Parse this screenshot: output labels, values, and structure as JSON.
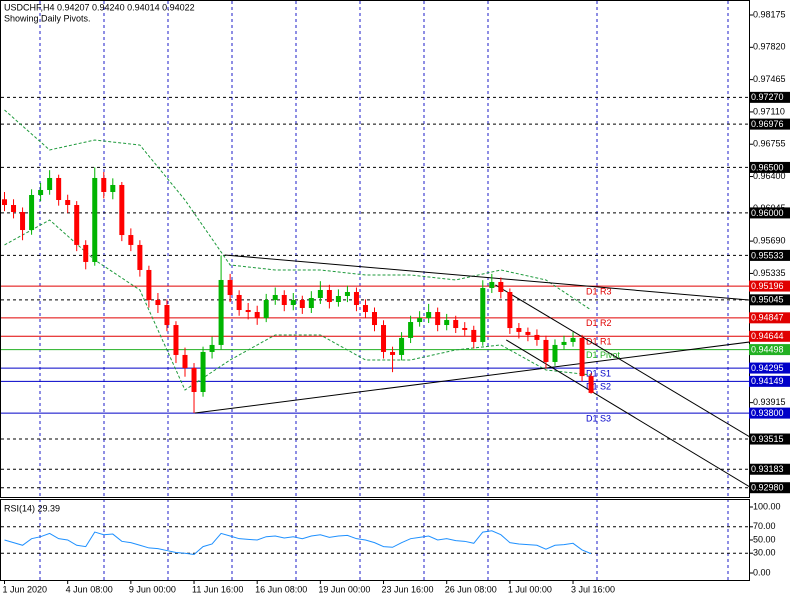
{
  "chart_data": {
    "type": "candlestick",
    "title": "USDCHF,H4  0.94207 0.94240 0.94014 0.94022",
    "subtitle": "Showing Daily Pivots.",
    "xlim": [
      -0.5,
      82.5
    ],
    "ylim": [
      0.92878,
      0.98318
    ],
    "xticks": [
      {
        "value": 0,
        "label": "1 Jun 2020"
      },
      {
        "value": 7,
        "label": "4 Jun 08:00"
      },
      {
        "value": 14,
        "label": "9 Jun 00:00"
      },
      {
        "value": 21,
        "label": "11 Jun 16:00"
      },
      {
        "value": 28,
        "label": "16 Jun 08:00"
      },
      {
        "value": 35,
        "label": "19 Jun 00:00"
      },
      {
        "value": 42,
        "label": "23 Jun 16:00"
      },
      {
        "value": 49,
        "label": "26 Jun 08:00"
      },
      {
        "value": 56,
        "label": "1 Jul 00:00"
      },
      {
        "value": 63,
        "label": "3 Jul 16:00"
      }
    ],
    "yticks": [
      {
        "value": 0.98175,
        "label": "0.98175"
      },
      {
        "value": 0.9782,
        "label": "0.97820"
      },
      {
        "value": 0.97465,
        "label": "0.97465"
      },
      {
        "value": 0.9711,
        "label": "0.97110"
      },
      {
        "value": 0.96755,
        "label": "0.96755"
      },
      {
        "value": 0.964,
        "label": "0.96400"
      },
      {
        "value": 0.96045,
        "label": "0.96045"
      },
      {
        "value": 0.9569,
        "label": "0.95690"
      },
      {
        "value": 0.95335,
        "label": "0.95335"
      },
      {
        "value": 0.93915,
        "label": "0.93915"
      }
    ],
    "up_color": "#00b400",
    "down_color": "#ff0000",
    "open": [
      0.9615,
      0.96087,
      0.9601,
      0.95812,
      0.96197,
      0.96252,
      0.96384,
      0.96142,
      0.96087,
      0.95648,
      0.95461,
      0.96384,
      0.9623,
      0.96307,
      0.95757,
      0.95648,
      0.95373,
      0.95043,
      0.94988,
      0.94768,
      0.94439,
      0.94296,
      0.94032,
      0.94472,
      0.94549,
      0.95263,
      0.95098,
      0.94933,
      0.94911,
      0.94845,
      0.95043,
      0.95098,
      0.94988,
      0.95043,
      0.94955,
      0.95065,
      0.95153,
      0.95021,
      0.95087,
      0.95131,
      0.94988,
      0.94911,
      0.94768,
      0.94472,
      0.94439,
      0.94626,
      0.94801,
      0.94845,
      0.94911,
      0.94768,
      0.94823,
      0.94735,
      0.94714,
      0.94582,
      0.95175,
      0.95241,
      0.95131,
      0.94735,
      0.94692,
      0.94659,
      0.94604,
      0.94362,
      0.94549,
      0.94582,
      0.94626,
      0.94207
    ],
    "high": [
      0.9623,
      0.9615,
      0.9606,
      0.9626,
      0.9633,
      0.9647,
      0.9642,
      0.962,
      0.9613,
      0.957,
      0.965,
      0.9645,
      0.9638,
      0.9634,
      0.9583,
      0.957,
      0.9542,
      0.9512,
      0.9505,
      0.9481,
      0.9452,
      0.9435,
      0.9453,
      0.9464,
      0.95533,
      0.9533,
      0.9515,
      0.9501,
      0.9498,
      0.9511,
      0.9518,
      0.9515,
      0.9512,
      0.9509,
      0.9514,
      0.9525,
      0.9521,
      0.9516,
      0.952,
      0.9518,
      0.9505,
      0.9496,
      0.9482,
      0.9453,
      0.9469,
      0.9487,
      0.9492,
      0.95,
      0.9496,
      0.9489,
      0.9487,
      0.948,
      0.9476,
      0.9526,
      0.9533,
      0.9529,
      0.9517,
      0.9479,
      0.9474,
      0.9472,
      0.9465,
      0.9461,
      0.9465,
      0.9469,
      0.9466,
      0.9424
    ],
    "low": [
      0.9602,
      0.9594,
      0.957,
      0.9576,
      0.9613,
      0.962,
      0.9608,
      0.96,
      0.9558,
      0.9538,
      0.9542,
      0.9616,
      0.9615,
      0.9569,
      0.9558,
      0.953,
      0.9496,
      0.949,
      0.947,
      0.9435,
      0.942,
      0.938,
      0.9398,
      0.944,
      0.945,
      0.9502,
      0.9487,
      0.9483,
      0.9477,
      0.948,
      0.9499,
      0.9492,
      0.9493,
      0.9489,
      0.949,
      0.95,
      0.9495,
      0.9497,
      0.9502,
      0.9492,
      0.9485,
      0.947,
      0.944,
      0.9425,
      0.9438,
      0.9457,
      0.9475,
      0.9479,
      0.947,
      0.9471,
      0.9468,
      0.9465,
      0.9451,
      0.9454,
      0.9512,
      0.9506,
      0.9467,
      0.9462,
      0.9459,
      0.9454,
      0.9429,
      0.9432,
      0.945,
      0.9453,
      0.9415,
      0.94014
    ],
    "close": [
      0.96087,
      0.9601,
      0.95812,
      0.96197,
      0.96252,
      0.96384,
      0.96142,
      0.96087,
      0.95648,
      0.95461,
      0.96384,
      0.9623,
      0.96307,
      0.95757,
      0.95648,
      0.95373,
      0.95043,
      0.94988,
      0.94768,
      0.94439,
      0.94296,
      0.94032,
      0.94472,
      0.94549,
      0.95263,
      0.95098,
      0.94933,
      0.94911,
      0.94845,
      0.95043,
      0.95098,
      0.94988,
      0.95043,
      0.94955,
      0.95065,
      0.95153,
      0.95021,
      0.95087,
      0.95131,
      0.94988,
      0.94911,
      0.94768,
      0.94472,
      0.94439,
      0.94626,
      0.94801,
      0.94845,
      0.94911,
      0.94768,
      0.94823,
      0.94735,
      0.94714,
      0.94582,
      0.95175,
      0.95241,
      0.95131,
      0.94735,
      0.94692,
      0.94659,
      0.94604,
      0.94362,
      0.94549,
      0.94582,
      0.94626,
      0.94207,
      0.94022
    ],
    "bands": {
      "color": "#1e9a3c",
      "x": [
        0,
        5,
        10,
        15,
        20,
        25,
        30,
        35,
        40,
        45,
        50,
        55,
        60,
        65
      ],
      "upper": [
        0.97131,
        0.96692,
        0.96801,
        0.96746,
        0.96142,
        0.95428,
        0.95373,
        0.95373,
        0.95318,
        0.95318,
        0.95263,
        0.95373,
        0.95263,
        0.94933
      ],
      "lower": [
        0.95648,
        0.95922,
        0.95483,
        0.95153,
        0.94054,
        0.94384,
        0.94659,
        0.94659,
        0.94384,
        0.94384,
        0.94494,
        0.94549,
        0.94274,
        0.94219
      ]
    },
    "trendlines": [
      {
        "x": [
          24.4,
          82.5
        ],
        "y": [
          0.95538,
          0.95043
        ]
      },
      {
        "x": [
          21.1,
          82.6
        ],
        "y": [
          0.93801,
          0.94582
        ]
      },
      {
        "x": [
          54.4,
          82.6
        ],
        "y": [
          0.95208,
          0.93538
        ]
      },
      {
        "x": [
          55.6,
          82.6
        ],
        "y": [
          0.94604,
          0.92988
        ]
      }
    ],
    "levels": [
      {
        "value": 0.9727,
        "label": "0.97270",
        "color": "#000000",
        "style": "dashed"
      },
      {
        "value": 0.96976,
        "label": "0.96976",
        "color": "#000000",
        "style": "dashed"
      },
      {
        "value": 0.965,
        "label": "0.96500",
        "color": "#000000",
        "style": "dashed"
      },
      {
        "value": 0.96,
        "label": "0.96000",
        "color": "#000000",
        "style": "dashed"
      },
      {
        "value": 0.95533,
        "label": "0.95533",
        "color": "#000000",
        "style": "dashed"
      },
      {
        "value": 0.95196,
        "label": "0.95196",
        "color": "#e00000",
        "style": "solid",
        "name": "D1 R3"
      },
      {
        "value": 0.95045,
        "label": "0.95045",
        "color": "#000000",
        "style": "dashed"
      },
      {
        "value": 0.94847,
        "label": "0.94847",
        "color": "#e00000",
        "style": "solid",
        "name": "D1 R2"
      },
      {
        "value": 0.94644,
        "label": "0.94644",
        "color": "#e00000",
        "style": "solid",
        "name": "D1 R1"
      },
      {
        "value": 0.94498,
        "label": "0.94498",
        "color": "#22b022",
        "style": "solid",
        "name": "D1 Pivot"
      },
      {
        "value": 0.94295,
        "label": "0.94295",
        "color": "#0000c8",
        "style": "solid",
        "name": "D1 S1"
      },
      {
        "value": 0.94149,
        "label": "0.94149",
        "color": "#0000c8",
        "style": "solid",
        "name": "D1 S2"
      },
      {
        "value": 0.938,
        "label": "0.93800",
        "color": "#0000c8",
        "style": "solid",
        "name": "D1 S3"
      },
      {
        "value": 0.93515,
        "label": "0.93515",
        "color": "#000000",
        "style": "dashed"
      },
      {
        "value": 0.93183,
        "label": "0.93183",
        "color": "#000000",
        "style": "dashed"
      },
      {
        "value": 0.9298,
        "label": "0.92980",
        "color": "#000000",
        "style": "dashed"
      }
    ],
    "rsi": {
      "label": "RSI(14) 29.39",
      "color": "#1e90ff",
      "ylim": [
        -10.6,
        110.6
      ],
      "yticks": [
        {
          "value": 100,
          "label": "100.00"
        },
        {
          "value": 70,
          "label": "70.00"
        },
        {
          "value": 50,
          "label": "50.00"
        },
        {
          "value": 30,
          "label": "30.00"
        },
        {
          "value": 0,
          "label": "0.00"
        }
      ],
      "levels": [
        70,
        30
      ],
      "values": [
        50,
        46,
        42,
        52,
        55,
        60,
        52,
        50,
        42,
        40,
        62,
        58,
        59,
        48,
        46,
        42,
        38,
        37,
        34,
        31,
        30,
        28,
        40,
        44,
        60,
        56,
        52,
        51,
        50,
        55,
        56,
        53,
        55,
        52,
        56,
        58,
        54,
        56,
        57,
        52,
        50,
        46,
        40,
        39,
        46,
        52,
        54,
        56,
        50,
        52,
        49,
        48,
        45,
        62,
        64,
        58,
        46,
        44,
        43,
        42,
        36,
        42,
        43,
        45,
        35,
        29.39
      ]
    }
  }
}
